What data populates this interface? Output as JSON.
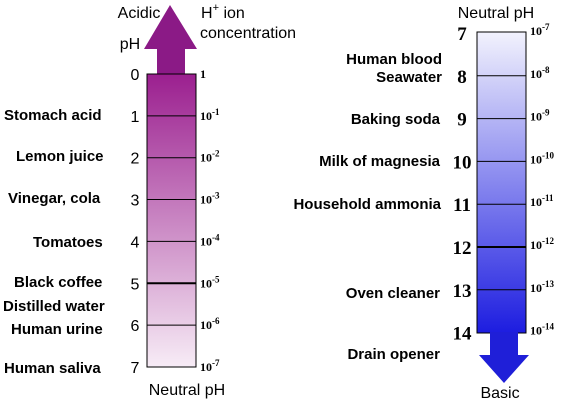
{
  "left_scale": {
    "top_heading": "Acidic",
    "concentration_heading": {
      "base": "H",
      "superscript": "+",
      "rest": " ion",
      "line2": "concentration"
    },
    "ph_heading": "pH",
    "bottom_heading": "Neutral pH",
    "gradient": {
      "top": "#9b1f8f",
      "bottom": "#f7ecf6"
    },
    "arrow_color": "#8b1a86",
    "ticks": [
      {
        "ph": "0",
        "conc": "1",
        "exp": ""
      },
      {
        "ph": "1",
        "conc": "10",
        "exp": "-1"
      },
      {
        "ph": "2",
        "conc": "10",
        "exp": "-2"
      },
      {
        "ph": "3",
        "conc": "10",
        "exp": "-3"
      },
      {
        "ph": "4",
        "conc": "10",
        "exp": "-4"
      },
      {
        "ph": "5",
        "conc": "10",
        "exp": "-5"
      },
      {
        "ph": "6",
        "conc": "10",
        "exp": "-6"
      },
      {
        "ph": "7",
        "conc": "10",
        "exp": "-7"
      }
    ],
    "substances": [
      {
        "text": "Stomach acid"
      },
      {
        "text": "Lemon juice"
      },
      {
        "text": "Vinegar, cola"
      },
      {
        "text": "Tomatoes"
      },
      {
        "text": "Black coffee"
      },
      {
        "text": "Distilled water"
      },
      {
        "text": "Human urine"
      },
      {
        "text": "Human saliva"
      }
    ]
  },
  "right_scale": {
    "top_heading": "Neutral pH",
    "bottom_heading": "Basic",
    "gradient": {
      "top": "#f2f2fd",
      "bottom": "#1d1de0"
    },
    "arrow_color": "#1f1fd8",
    "ticks": [
      {
        "ph": "7",
        "conc": "10",
        "exp": "-7"
      },
      {
        "ph": "8",
        "conc": "10",
        "exp": "-8"
      },
      {
        "ph": "9",
        "conc": "10",
        "exp": "-9"
      },
      {
        "ph": "10",
        "conc": "10",
        "exp": "-10"
      },
      {
        "ph": "11",
        "conc": "10",
        "exp": "-11"
      },
      {
        "ph": "12",
        "conc": "10",
        "exp": "-12"
      },
      {
        "ph": "13",
        "conc": "10",
        "exp": "-13"
      },
      {
        "ph": "14",
        "conc": "10",
        "exp": "-14"
      }
    ],
    "substances": [
      {
        "text": "Human blood"
      },
      {
        "text": "Seawater"
      },
      {
        "text": "Baking soda"
      },
      {
        "text": "Milk of magnesia"
      },
      {
        "text": "Household ammonia"
      },
      {
        "text": "Oven cleaner"
      },
      {
        "text": "Drain opener"
      }
    ]
  }
}
